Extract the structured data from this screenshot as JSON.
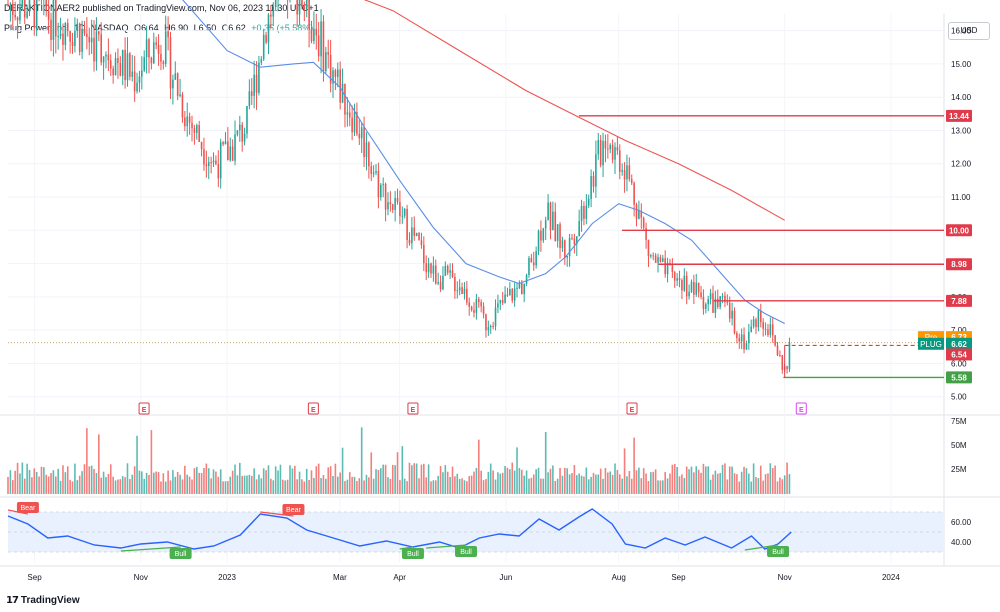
{
  "header": {
    "publish_line": "DERAKTIONAER2 published on TradingView.com, Nov 06, 2023 11:30 UTC+1",
    "symbol": "Plug Power, Inc., 1D, NASDAQ",
    "open": "O6.64",
    "high": "H6.90",
    "low": "L6.50",
    "close": "C6.62",
    "change": "+0.35 (+5.58%)"
  },
  "currency": "USD",
  "brand": "TradingView",
  "colors": {
    "up": "#26a69a",
    "down": "#ef5350",
    "ma_fast": "#5b8ee6",
    "ma_slow": "#ef5350",
    "level": "#e03b4a",
    "support": "#43a047",
    "rsi": "#2962ff",
    "rsi_band": "#e8f1fd"
  },
  "chart_data": {
    "type": "candlestick",
    "title": "Plug Power, Inc., 1D, NASDAQ",
    "price_axis": {
      "ticks": [
        "5.00",
        "6.00",
        "7.00",
        "8.00",
        "9.00",
        "10.00",
        "11.00",
        "12.00",
        "13.00",
        "14.00",
        "15.00",
        "16.00"
      ],
      "range": [
        4.6,
        16.5
      ]
    },
    "volume_axis": {
      "ticks": [
        "25M",
        "50M",
        "75M"
      ]
    },
    "rsi_axis": {
      "ticks": [
        "40.00",
        "60.00"
      ],
      "band": [
        30,
        70
      ]
    },
    "x_labels": [
      "Sep",
      "Nov",
      "2023",
      "Mar",
      "Apr",
      "Jun",
      "Aug",
      "Sep",
      "Nov",
      "2024"
    ],
    "x_label_pos": [
      2022.71,
      2022.87,
      2023.0,
      2023.17,
      2023.26,
      2023.42,
      2023.59,
      2023.68,
      2023.84,
      2024.0
    ],
    "x_range": [
      2022.67,
      2024.08
    ],
    "price_path": [
      {
        "t": 2022.7,
        "p": 16.8
      },
      {
        "t": 2022.76,
        "p": 16.2
      },
      {
        "t": 2022.82,
        "p": 15.4
      },
      {
        "t": 2022.86,
        "p": 14.6
      },
      {
        "t": 2022.9,
        "p": 15.8
      },
      {
        "t": 2022.94,
        "p": 13.4
      },
      {
        "t": 2022.98,
        "p": 12.0
      },
      {
        "t": 2023.0,
        "p": 12.3
      },
      {
        "t": 2023.03,
        "p": 13.2
      },
      {
        "t": 2023.06,
        "p": 16.4
      },
      {
        "t": 2023.1,
        "p": 17.5
      },
      {
        "t": 2023.13,
        "p": 16.2
      },
      {
        "t": 2023.16,
        "p": 14.7
      },
      {
        "t": 2023.2,
        "p": 13.0
      },
      {
        "t": 2023.23,
        "p": 11.3
      },
      {
        "t": 2023.27,
        "p": 10.2
      },
      {
        "t": 2023.31,
        "p": 8.7
      },
      {
        "t": 2023.35,
        "p": 8.4
      },
      {
        "t": 2023.39,
        "p": 7.2
      },
      {
        "t": 2023.42,
        "p": 7.9
      },
      {
        "t": 2023.45,
        "p": 8.5
      },
      {
        "t": 2023.48,
        "p": 10.6
      },
      {
        "t": 2023.51,
        "p": 9.3
      },
      {
        "t": 2023.54,
        "p": 10.9
      },
      {
        "t": 2023.57,
        "p": 12.9
      },
      {
        "t": 2023.6,
        "p": 11.9
      },
      {
        "t": 2023.62,
        "p": 10.6
      },
      {
        "t": 2023.635,
        "p": 9.3
      },
      {
        "t": 2023.66,
        "p": 8.7
      },
      {
        "t": 2023.69,
        "p": 8.4
      },
      {
        "t": 2023.72,
        "p": 7.9
      },
      {
        "t": 2023.75,
        "p": 7.7
      },
      {
        "t": 2023.78,
        "p": 6.6
      },
      {
        "t": 2023.8,
        "p": 7.5
      },
      {
        "t": 2023.82,
        "p": 6.9
      },
      {
        "t": 2023.835,
        "p": 6.0
      },
      {
        "t": 2023.845,
        "p": 5.7
      },
      {
        "t": 2023.85,
        "p": 6.6
      }
    ],
    "ma_fast": [
      {
        "t": 2022.87,
        "p": 18.0
      },
      {
        "t": 2022.93,
        "p": 17.0
      },
      {
        "t": 2023.0,
        "p": 15.4
      },
      {
        "t": 2023.05,
        "p": 14.9
      },
      {
        "t": 2023.1,
        "p": 15.0
      },
      {
        "t": 2023.13,
        "p": 15.05
      },
      {
        "t": 2023.17,
        "p": 14.3
      },
      {
        "t": 2023.21,
        "p": 13.0
      },
      {
        "t": 2023.26,
        "p": 11.5
      },
      {
        "t": 2023.31,
        "p": 10.1
      },
      {
        "t": 2023.36,
        "p": 9.0
      },
      {
        "t": 2023.41,
        "p": 8.6
      },
      {
        "t": 2023.44,
        "p": 8.4
      },
      {
        "t": 2023.48,
        "p": 8.7
      },
      {
        "t": 2023.51,
        "p": 9.2
      },
      {
        "t": 2023.55,
        "p": 10.2
      },
      {
        "t": 2023.59,
        "p": 10.8
      },
      {
        "t": 2023.62,
        "p": 10.6
      },
      {
        "t": 2023.66,
        "p": 10.2
      },
      {
        "t": 2023.7,
        "p": 9.7
      },
      {
        "t": 2023.74,
        "p": 8.8
      },
      {
        "t": 2023.78,
        "p": 7.9
      },
      {
        "t": 2023.81,
        "p": 7.5
      },
      {
        "t": 2023.84,
        "p": 7.2
      }
    ],
    "ma_slow": [
      {
        "t": 2023.12,
        "p": 17.6
      },
      {
        "t": 2023.25,
        "p": 16.6
      },
      {
        "t": 2023.35,
        "p": 15.4
      },
      {
        "t": 2023.45,
        "p": 14.2
      },
      {
        "t": 2023.53,
        "p": 13.4
      },
      {
        "t": 2023.6,
        "p": 12.7
      },
      {
        "t": 2023.68,
        "p": 12.0
      },
      {
        "t": 2023.76,
        "p": 11.2
      },
      {
        "t": 2023.84,
        "p": 10.3
      }
    ],
    "levels": [
      {
        "label": "13.44",
        "value": 13.44,
        "t_start": 2023.53,
        "color": "#e03b4a"
      },
      {
        "label": "10.00",
        "value": 10.0,
        "t_start": 2023.595,
        "color": "#e03b4a"
      },
      {
        "label": "8.98",
        "value": 8.98,
        "t_start": 2023.65,
        "color": "#e03b4a"
      },
      {
        "label": "7.88",
        "value": 7.88,
        "t_start": 2023.733,
        "color": "#e03b4a"
      },
      {
        "label": "5.58",
        "value": 5.58,
        "t_start": 2023.838,
        "color": "#43a047"
      }
    ],
    "price_tags": [
      {
        "label": "Pre",
        "value": "6.73",
        "color": "#ff9800"
      },
      {
        "label": "PLUG",
        "value": "6.62",
        "color": "#089981"
      },
      {
        "label": "",
        "value": "6.54",
        "color": "#e03b4a"
      }
    ],
    "last_close": 6.62,
    "dashed_level": 6.54,
    "earnings_markers": {
      "label": "E",
      "t": [
        2022.875,
        2023.13,
        2023.28,
        2023.61,
        2023.865
      ]
    },
    "rsi_path": [
      {
        "t": 2022.67,
        "v": 66
      },
      {
        "t": 2022.7,
        "v": 58
      },
      {
        "t": 2022.73,
        "v": 44
      },
      {
        "t": 2022.76,
        "v": 46
      },
      {
        "t": 2022.8,
        "v": 37
      },
      {
        "t": 2022.84,
        "v": 34
      },
      {
        "t": 2022.87,
        "v": 38
      },
      {
        "t": 2022.91,
        "v": 40
      },
      {
        "t": 2022.95,
        "v": 33
      },
      {
        "t": 2022.98,
        "v": 36
      },
      {
        "t": 2023.02,
        "v": 47
      },
      {
        "t": 2023.05,
        "v": 68
      },
      {
        "t": 2023.09,
        "v": 64
      },
      {
        "t": 2023.12,
        "v": 52
      },
      {
        "t": 2023.16,
        "v": 44
      },
      {
        "t": 2023.2,
        "v": 36
      },
      {
        "t": 2023.24,
        "v": 41
      },
      {
        "t": 2023.28,
        "v": 35
      },
      {
        "t": 2023.32,
        "v": 40
      },
      {
        "t": 2023.35,
        "v": 34
      },
      {
        "t": 2023.38,
        "v": 44
      },
      {
        "t": 2023.41,
        "v": 48
      },
      {
        "t": 2023.44,
        "v": 46
      },
      {
        "t": 2023.47,
        "v": 63
      },
      {
        "t": 2023.5,
        "v": 52
      },
      {
        "t": 2023.53,
        "v": 65
      },
      {
        "t": 2023.55,
        "v": 73
      },
      {
        "t": 2023.58,
        "v": 58
      },
      {
        "t": 2023.6,
        "v": 38
      },
      {
        "t": 2023.63,
        "v": 34
      },
      {
        "t": 2023.66,
        "v": 44
      },
      {
        "t": 2023.69,
        "v": 37
      },
      {
        "t": 2023.72,
        "v": 45
      },
      {
        "t": 2023.76,
        "v": 34
      },
      {
        "t": 2023.79,
        "v": 46
      },
      {
        "t": 2023.81,
        "v": 33
      },
      {
        "t": 2023.83,
        "v": 38
      },
      {
        "t": 2023.85,
        "v": 50
      }
    ],
    "divergences": [
      {
        "label": "Bear",
        "kind": "bear",
        "t1": 2022.67,
        "v1": 72,
        "t2": 2022.7,
        "v2": 68
      },
      {
        "label": "Bear",
        "kind": "bear",
        "t1": 2023.05,
        "v1": 70,
        "t2": 2023.1,
        "v2": 66
      },
      {
        "label": "Bull",
        "kind": "bull",
        "t1": 2022.84,
        "v1": 31,
        "t2": 2022.93,
        "v2": 35
      },
      {
        "label": "Bull",
        "kind": "bull",
        "t1": 2023.26,
        "v1": 33,
        "t2": 2023.28,
        "v2": 35
      },
      {
        "label": "Bull",
        "kind": "bull",
        "t1": 2023.3,
        "v1": 34,
        "t2": 2023.36,
        "v2": 37
      },
      {
        "label": "Bull",
        "kind": "bull",
        "t1": 2023.78,
        "v1": 32,
        "t2": 2023.83,
        "v2": 37
      }
    ]
  }
}
